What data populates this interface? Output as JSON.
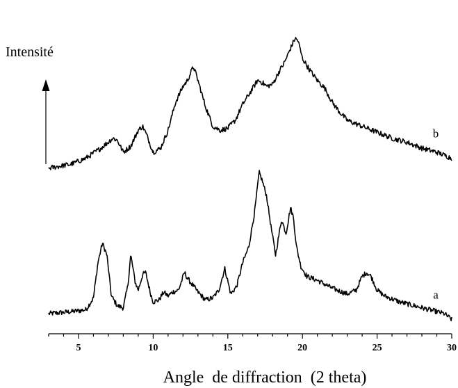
{
  "chart_data": {
    "type": "line",
    "title": "",
    "xlabel": "Angle  de diffraction  (2 theta)",
    "ylabel": "Intensité",
    "xlim": [
      3,
      30
    ],
    "ylim": [
      0,
      100
    ],
    "xticks": [
      5,
      10,
      15,
      20,
      25,
      30
    ],
    "y_axis_ticks": false,
    "grid": false,
    "legend": "none",
    "series": [
      {
        "name": "a",
        "color": "#000000",
        "x": [
          3.0,
          4.5,
          5.5,
          6.0,
          6.3,
          6.6,
          6.9,
          7.2,
          7.6,
          8.0,
          8.3,
          8.5,
          8.8,
          9.0,
          9.3,
          9.5,
          9.8,
          10.0,
          10.4,
          10.7,
          11.0,
          11.3,
          11.7,
          12.1,
          12.3,
          12.6,
          13.0,
          13.5,
          14.0,
          14.4,
          14.8,
          15.2,
          15.6,
          16.0,
          16.4,
          16.8,
          17.1,
          17.3,
          17.6,
          17.9,
          18.2,
          18.6,
          18.9,
          19.2,
          19.4,
          19.6,
          19.9,
          20.3,
          21.0,
          22.0,
          23.0,
          23.6,
          24.0,
          24.3,
          24.6,
          25.0,
          25.5,
          26.5,
          27.5,
          28.5,
          29.5,
          30.0
        ],
        "y": [
          6,
          7,
          8,
          14,
          32,
          42,
          36,
          15,
          10,
          9,
          20,
          36,
          22,
          18,
          26,
          27,
          17,
          12,
          13,
          17,
          15,
          17,
          18,
          27,
          24,
          21,
          17,
          13,
          14,
          18,
          29,
          16,
          20,
          32,
          40,
          58,
          78,
          74,
          66,
          50,
          36,
          54,
          47,
          60,
          55,
          40,
          30,
          25,
          23,
          19,
          16,
          18,
          25,
          27,
          25,
          18,
          15,
          12,
          10,
          8,
          6,
          3
        ]
      },
      {
        "name": "b",
        "color": "#000000",
        "x": [
          3.0,
          4.5,
          5.5,
          6.5,
          7.3,
          7.6,
          8.0,
          8.5,
          9.0,
          9.3,
          9.6,
          10.0,
          10.5,
          11.0,
          11.5,
          12.0,
          12.3,
          12.7,
          13.0,
          13.5,
          14.0,
          14.5,
          15.0,
          15.5,
          16.0,
          16.5,
          17.0,
          17.3,
          17.6,
          18.0,
          18.4,
          18.8,
          19.2,
          19.5,
          19.7,
          20.0,
          20.5,
          21.0,
          21.5,
          22.0,
          22.5,
          23.0,
          24.0,
          25.0,
          26.0,
          27.0,
          28.0,
          29.0,
          30.0
        ],
        "y": [
          22,
          24,
          27,
          32,
          37,
          36,
          30,
          33,
          41,
          43,
          38,
          30,
          32,
          41,
          55,
          63,
          66,
          73,
          66,
          53,
          43,
          41,
          42,
          46,
          54,
          60,
          66,
          65,
          63,
          64,
          70,
          75,
          82,
          87,
          86,
          77,
          71,
          66,
          62,
          55,
          50,
          46,
          43,
          40,
          37,
          35,
          32,
          30,
          27
        ]
      }
    ]
  }
}
